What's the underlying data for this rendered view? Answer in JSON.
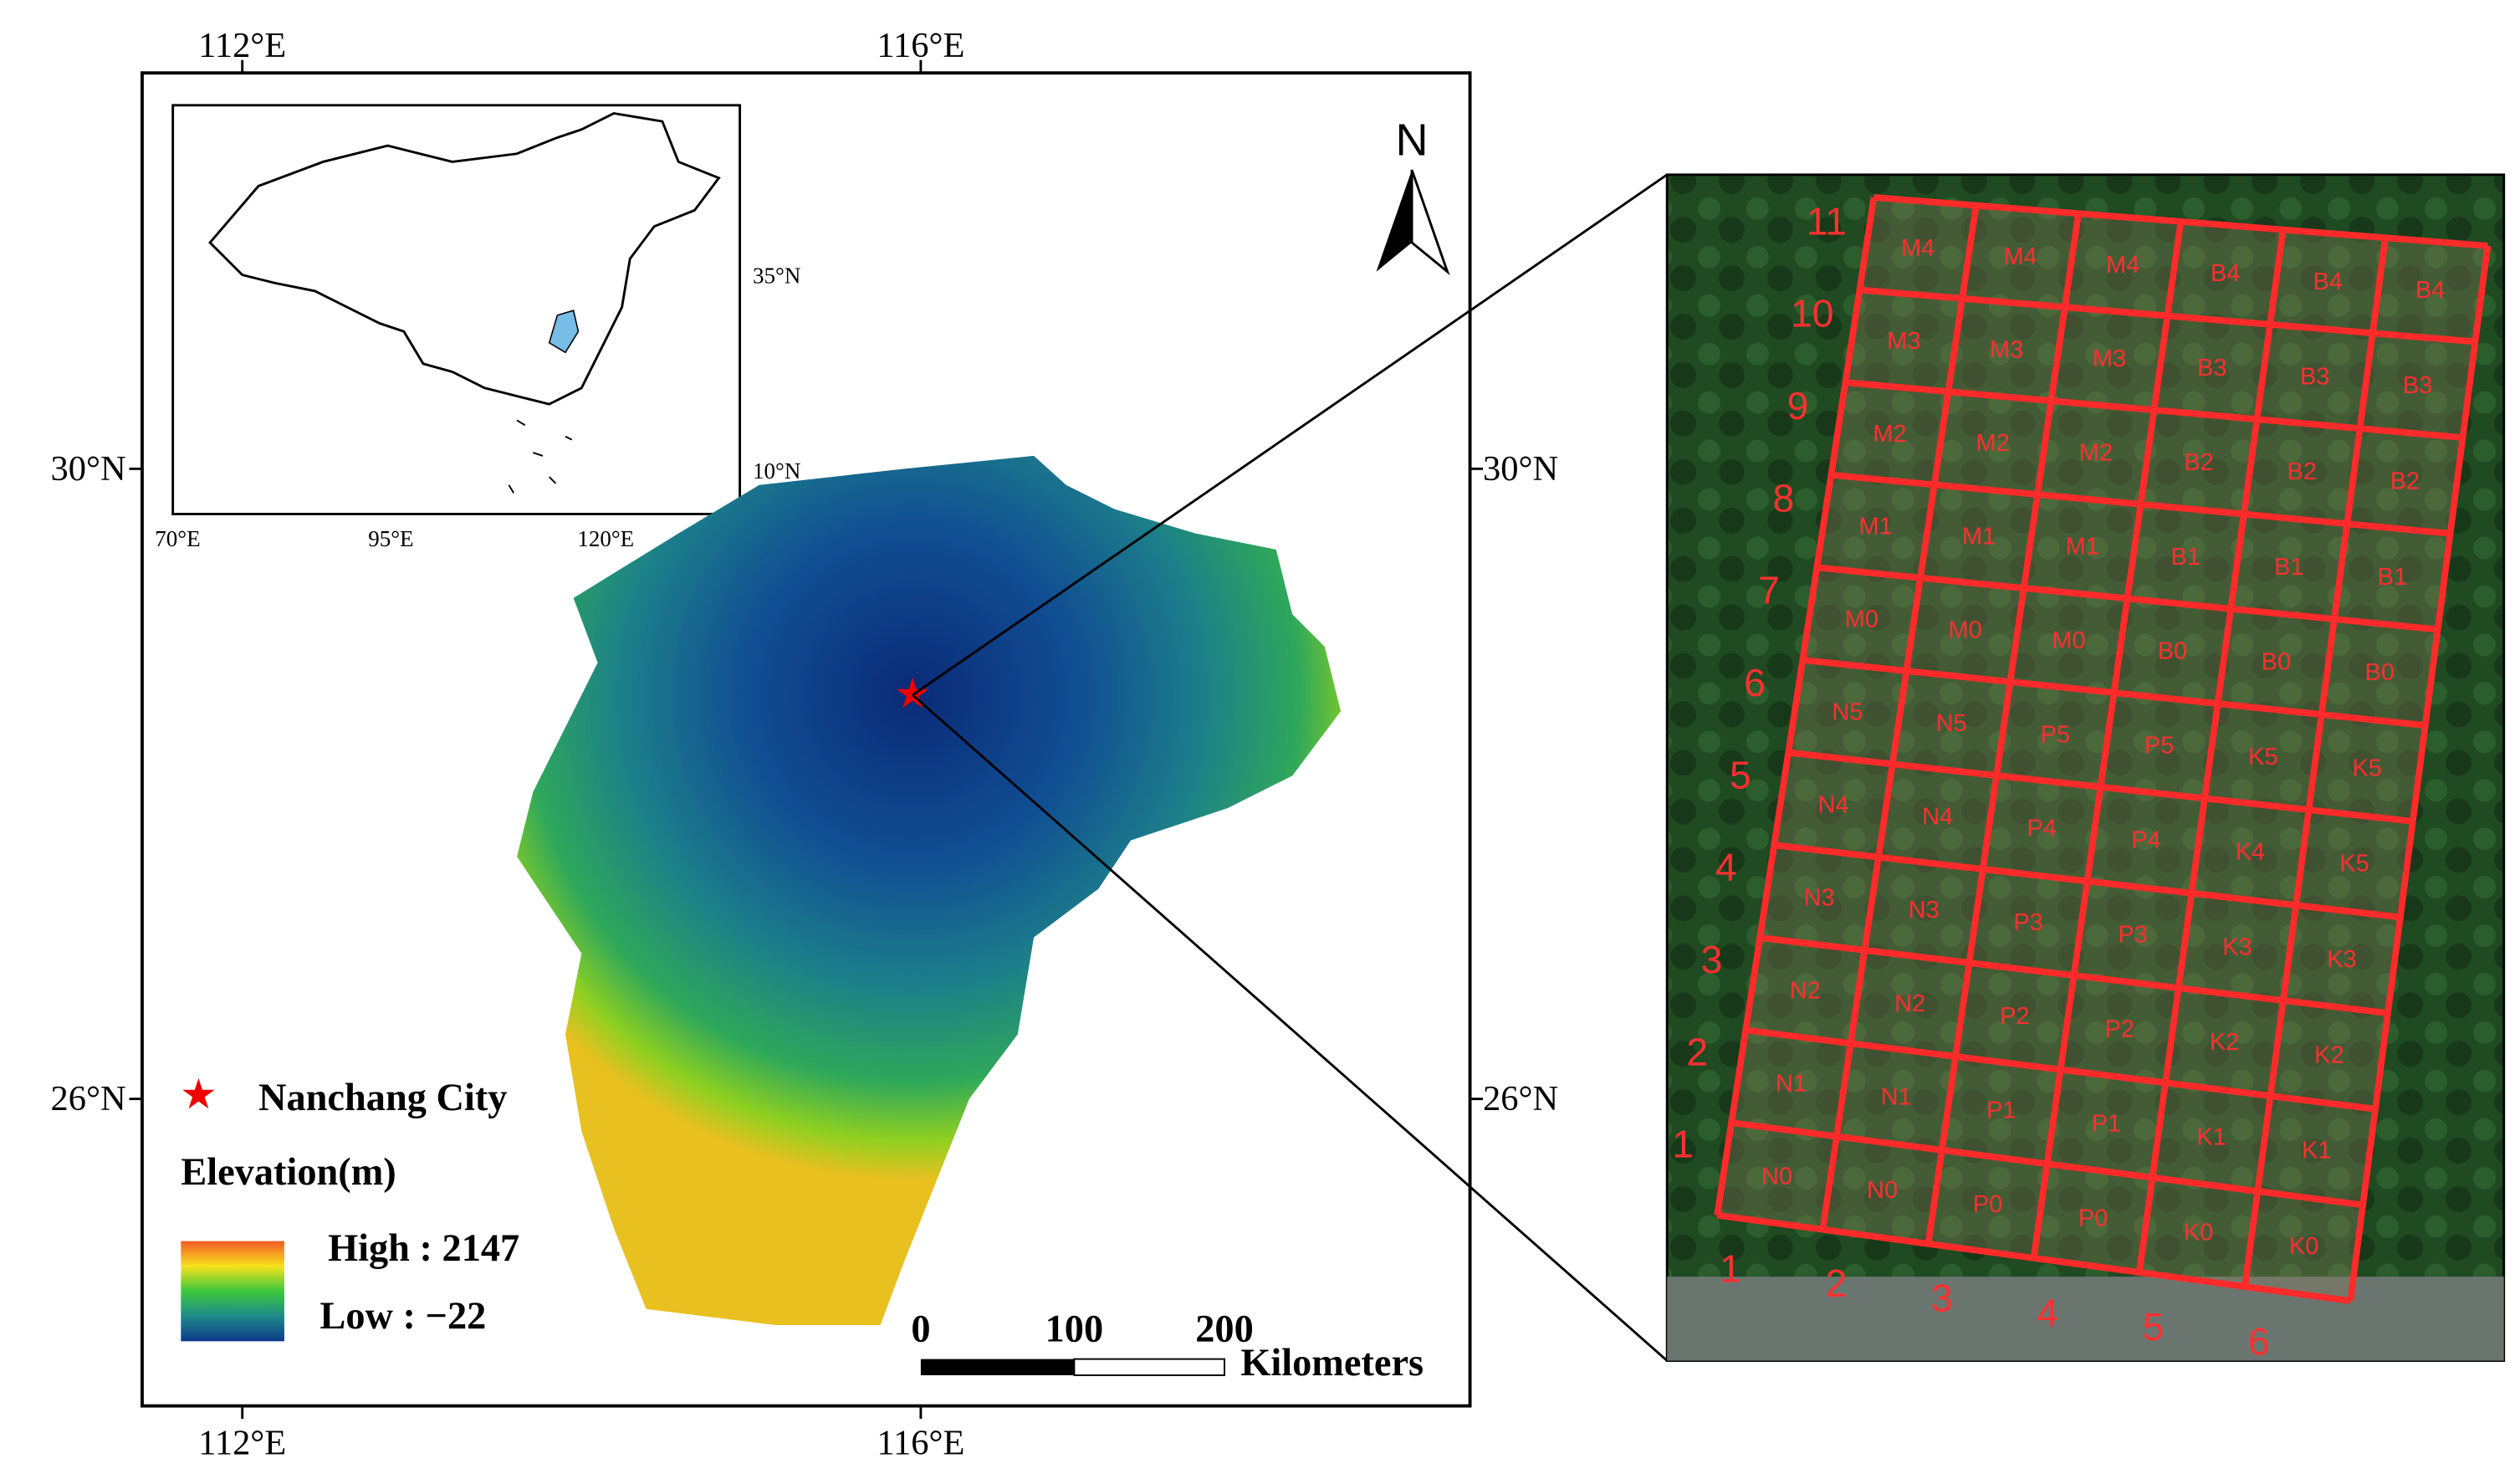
{
  "map": {
    "frame_labels": {
      "top": [
        "112°E",
        "116°E"
      ],
      "bottom": [
        "112°E",
        "116°E"
      ],
      "left": [
        "30°N",
        "26°N"
      ],
      "right": [
        "30°N",
        "26°N"
      ]
    },
    "inset": {
      "x_labels": [
        "70°E",
        "95°E",
        "120°E"
      ],
      "y_labels": [
        "35°N",
        "10°N"
      ]
    },
    "north": "N",
    "legend": {
      "city": "Nanchang City",
      "elevation_title": "Elevation(m)",
      "high": "High : 2147",
      "low": "Low : −22"
    },
    "scale_bar": {
      "labels": [
        "0",
        "100",
        "200"
      ],
      "unit": "Kilometers"
    }
  },
  "plot_grid": {
    "rows": [
      [
        "M4",
        "M4",
        "M4",
        "B4",
        "B4",
        "B4"
      ],
      [
        "M3",
        "M3",
        "M3",
        "B3",
        "B3",
        "B3"
      ],
      [
        "M2",
        "M2",
        "M2",
        "B2",
        "B2",
        "B2"
      ],
      [
        "M1",
        "M1",
        "M1",
        "B1",
        "B1",
        "B1"
      ],
      [
        "M0",
        "M0",
        "M0",
        "B0",
        "B0",
        "B0"
      ],
      [
        "N5",
        "N5",
        "P5",
        "P5",
        "K5",
        "K5"
      ],
      [
        "N4",
        "N4",
        "P4",
        "P4",
        "K4",
        "K5"
      ],
      [
        "N3",
        "N3",
        "P3",
        "P3",
        "K3",
        "K3"
      ],
      [
        "N2",
        "N2",
        "P2",
        "P2",
        "K2",
        "K2"
      ],
      [
        "N1",
        "N1",
        "P1",
        "P1",
        "K1",
        "K1"
      ],
      [
        "N0",
        "N0",
        "P0",
        "P0",
        "K0",
        "K0"
      ]
    ],
    "row_labels": [
      "11",
      "10",
      "9",
      "8",
      "7",
      "6",
      "5",
      "4",
      "3",
      "2",
      "1"
    ],
    "column_labels": [
      "1",
      "2",
      "3",
      "4",
      "5",
      "6"
    ]
  }
}
